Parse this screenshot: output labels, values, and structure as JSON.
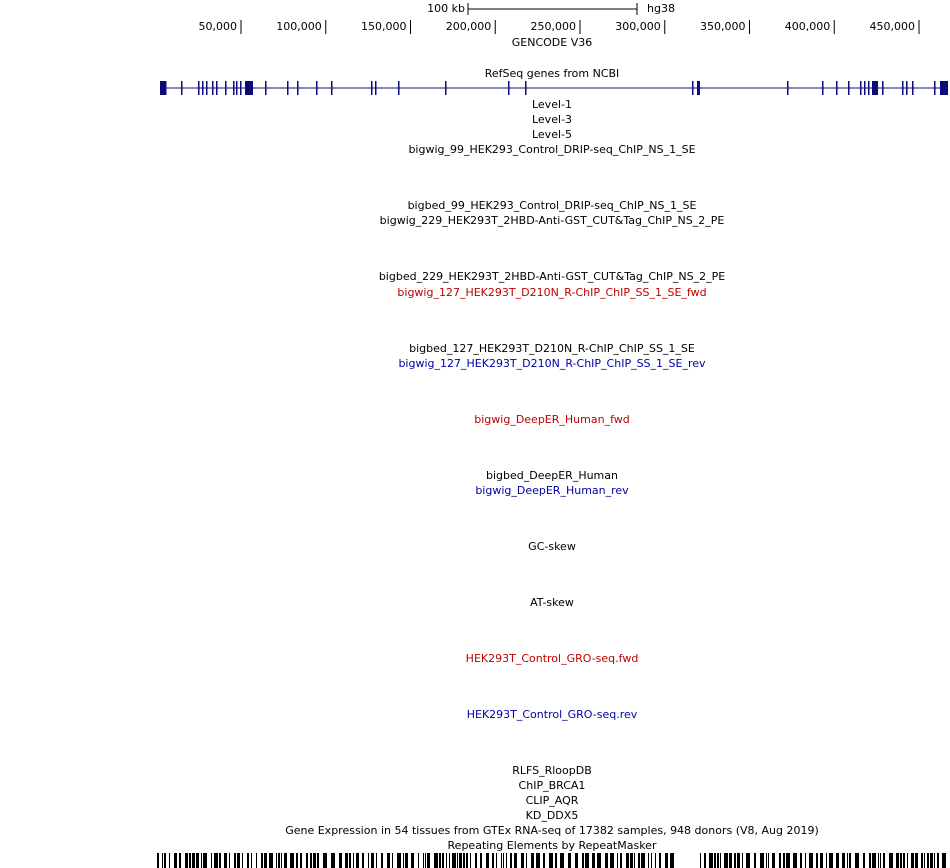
{
  "scale": {
    "size_label": "100 kb",
    "assembly": "hg38"
  },
  "ruler": {
    "ticks": [
      "50,000",
      "100,000",
      "150,000",
      "200,000",
      "250,000",
      "300,000",
      "350,000",
      "400,000",
      "450,000"
    ]
  },
  "tracks": [
    {
      "label": "GENCODE V36"
    },
    {
      "label": "RefSeq genes from NCBI"
    },
    {
      "label": "Level-1"
    },
    {
      "label": "Level-3"
    },
    {
      "label": "Level-5"
    },
    {
      "label": "bigwig_99_HEK293_Control_DRIP-seq_ChIP_NS_1_SE"
    },
    {
      "label": "bigbed_99_HEK293_Control_DRIP-seq_ChIP_NS_1_SE"
    },
    {
      "label": "bigwig_229_HEK293T_2HBD-Anti-GST_CUT&Tag_ChIP_NS_2_PE"
    },
    {
      "label": "bigbed_229_HEK293T_2HBD-Anti-GST_CUT&Tag_ChIP_NS_2_PE"
    },
    {
      "label": "bigwig_127_HEK293T_D210N_R-ChIP_ChIP_SS_1_SE_fwd"
    },
    {
      "label": "bigbed_127_HEK293T_D210N_R-ChIP_ChIP_SS_1_SE"
    },
    {
      "label": "bigwig_127_HEK293T_D210N_R-ChIP_ChIP_SS_1_SE_rev"
    },
    {
      "label": "bigwig_DeepER_Human_fwd"
    },
    {
      "label": "bigbed_DeepER_Human"
    },
    {
      "label": "bigwig_DeepER_Human_rev"
    },
    {
      "label": "GC-skew"
    },
    {
      "label": "AT-skew"
    },
    {
      "label": "HEK293T_Control_GRO-seq.fwd"
    },
    {
      "label": "HEK293T_Control_GRO-seq.rev"
    },
    {
      "label": "RLFS_RloopDB"
    },
    {
      "label": "ChIP_BRCA1"
    },
    {
      "label": "CLIP_AQR"
    },
    {
      "label": "KD_DDX5"
    },
    {
      "label": "Gene Expression in 54 tissues from GTEx RNA-seq of 17382 samples, 948 donors (V8, Aug 2019)"
    },
    {
      "label": "Repeating Elements by RepeatMasker"
    }
  ]
}
